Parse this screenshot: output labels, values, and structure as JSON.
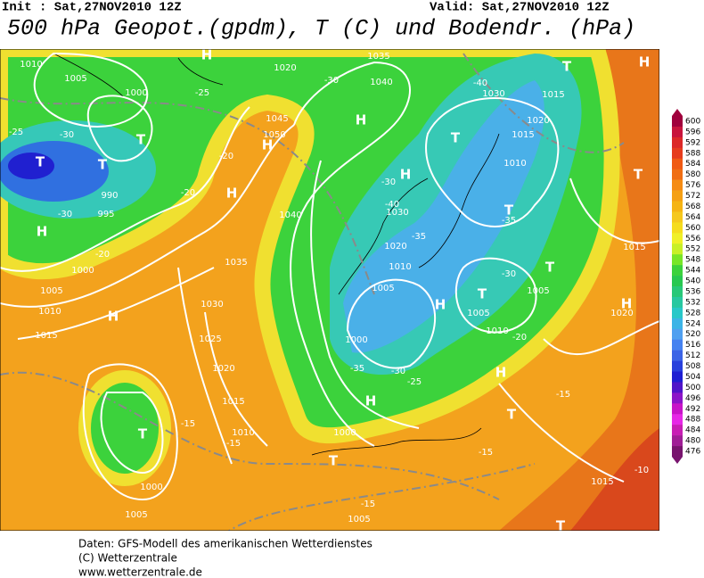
{
  "header": {
    "init": "Init : Sat,27NOV2010 12Z",
    "valid": "Valid: Sat,27NOV2010 12Z",
    "title": "500 hPa Geopot.(gpdm), T (C) und Bodendr. (hPa)"
  },
  "colorbar": {
    "levels": [
      600,
      596,
      592,
      588,
      584,
      580,
      576,
      572,
      568,
      564,
      560,
      556,
      552,
      548,
      544,
      540,
      536,
      532,
      528,
      524,
      520,
      516,
      512,
      508,
      504,
      500,
      496,
      492,
      488,
      484,
      480,
      476
    ],
    "colors": [
      "#a0003c",
      "#c8143c",
      "#dc2828",
      "#e63c1e",
      "#f05a14",
      "#f06e14",
      "#f58c14",
      "#f5a014",
      "#f5b414",
      "#f5c81e",
      "#f5dc1e",
      "#f0f028",
      "#c8f028",
      "#78e628",
      "#3cd23c",
      "#28c850",
      "#28c878",
      "#28c8a0",
      "#28c8c8",
      "#3cb4e6",
      "#50a0f0",
      "#4682f0",
      "#3c64e6",
      "#2840dc",
      "#1e1ed2",
      "#5014c8",
      "#8c14c8",
      "#c814c8",
      "#e628e6",
      "#c81eb4",
      "#a01e96",
      "#78146e"
    ]
  },
  "map": {
    "labels": [
      "T",
      "T",
      "T",
      "H",
      "H",
      "H",
      "H",
      "H",
      "T",
      "H",
      "H",
      "T",
      "T",
      "T",
      "T",
      "H",
      "T",
      "T",
      "H",
      "T",
      "H",
      "T",
      "T",
      "H",
      "H",
      "1010",
      "1005",
      "1000",
      "990",
      "995",
      "1000",
      "1005",
      "1010",
      "1015",
      "1035",
      "1030",
      "1025",
      "1020",
      "1015",
      "1010",
      "1005",
      "1000",
      "1040",
      "1035",
      "1040",
      "1045",
      "1050",
      "1020",
      "1030",
      "1020",
      "1010",
      "1005",
      "1000",
      "1000",
      "1005",
      "1005",
      "1010",
      "1015",
      "1010",
      "1020",
      "1030",
      "1015",
      "1005",
      "1015",
      "1020",
      "1015",
      "-30",
      "-25",
      "-20",
      "-20",
      "-30",
      "-20",
      "-30",
      "-40",
      "-35",
      "-30",
      "-20",
      "-15",
      "-15",
      "-15",
      "-15",
      "-15",
      "-35",
      "-30",
      "-25",
      "-40",
      "-35",
      "-30",
      "-25",
      "-10"
    ]
  },
  "footer": {
    "lines": [
      "Daten: GFS-Modell des amerikanischen Wetterdienstes",
      "(C) Wetterzentrale",
      "www.wetterzentrale.de"
    ]
  }
}
